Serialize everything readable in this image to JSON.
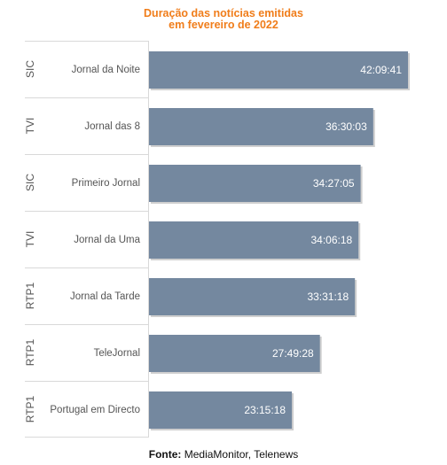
{
  "chart_data": {
    "type": "bar",
    "orientation": "horizontal",
    "title": "Duração das notícias emitidas",
    "subtitle": "em fevereiro de 2022",
    "categories": [
      {
        "channel": "SIC",
        "program": "Jornal da Noite"
      },
      {
        "channel": "TVI",
        "program": "Jornal das 8"
      },
      {
        "channel": "SIC",
        "program": "Primeiro Jornal"
      },
      {
        "channel": "TVI",
        "program": "Jornal da Uma"
      },
      {
        "channel": "RTP1",
        "program": "Jornal da Tarde"
      },
      {
        "channel": "RTP1",
        "program": "TeleJornal"
      },
      {
        "channel": "RTP1",
        "program": "Portugal em Directo"
      }
    ],
    "values": [
      "42:09:41",
      "36:30:03",
      "34:27:05",
      "34:06:18",
      "33:31:18",
      "27:49:28",
      "23:15:18"
    ],
    "grid": false,
    "legend": "none"
  },
  "colors": {
    "title": "#f07d1a",
    "bar": "#74889f",
    "bar_shadow": "#cfcfcf",
    "bar_label": "#ffffff",
    "axis_text": "#555555",
    "separator": "#d9d9d9"
  },
  "source": {
    "label": "Fonte:",
    "text": " MediaMonitor, Telenews"
  }
}
